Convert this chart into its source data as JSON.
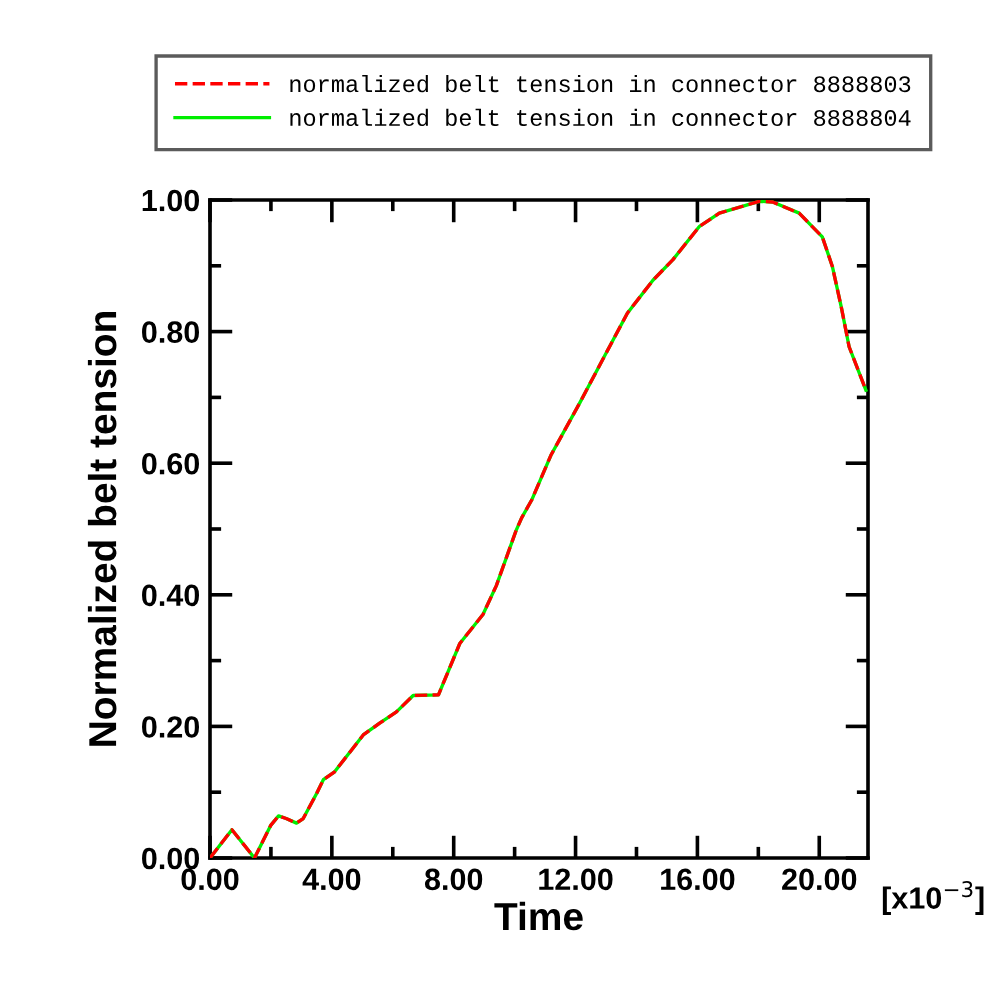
{
  "chart_data": {
    "type": "line",
    "xlabel": "Time",
    "ylabel": "Normalized belt tension",
    "annotations": [
      "[x10$^{−3}$]"
    ],
    "x": [
      0,
      0.72,
      1.46,
      2.0,
      2.25,
      2.5,
      2.84,
      3.06,
      3.5,
      3.72,
      4.09,
      5.03,
      5.57,
      6.12,
      6.67,
      7.5,
      8.2,
      8.96,
      9.4,
      10.05,
      10.23,
      10.56,
      11.19,
      12.13,
      13.0,
      13.7,
      14.54,
      15.19,
      16.07,
      16.72,
      18.03,
      18.47,
      19.34,
      20.1,
      20.43,
      20.72,
      20.98,
      21.53
    ],
    "series": [
      {
        "name": "normalized belt tension in connector 8888803",
        "color": "#ff0000",
        "line_style": "dashed",
        "values": [
          0,
          0.043,
          0,
          0.05,
          0.064,
          0.06,
          0.053,
          0.06,
          0.098,
          0.119,
          0.131,
          0.187,
          0.205,
          0.222,
          0.247,
          0.248,
          0.326,
          0.37,
          0.414,
          0.498,
          0.517,
          0.544,
          0.612,
          0.691,
          0.767,
          0.828,
          0.878,
          0.909,
          0.96,
          0.98,
          0.998,
          0.997,
          0.98,
          0.944,
          0.899,
          0.838,
          0.777,
          0.711
        ]
      },
      {
        "name": "normalized belt tension in connector 8888804",
        "color": "#00ee00",
        "line_style": "solid",
        "values": [
          0,
          0.043,
          0,
          0.05,
          0.064,
          0.06,
          0.053,
          0.06,
          0.098,
          0.119,
          0.131,
          0.187,
          0.205,
          0.222,
          0.247,
          0.248,
          0.326,
          0.37,
          0.414,
          0.498,
          0.517,
          0.544,
          0.612,
          0.691,
          0.767,
          0.828,
          0.878,
          0.909,
          0.96,
          0.98,
          0.998,
          0.997,
          0.98,
          0.944,
          0.899,
          0.838,
          0.777,
          0.711
        ]
      }
    ],
    "xlim": [
      0,
      21.6
    ],
    "xticks": [
      {
        "value": 0,
        "label": "0.00"
      },
      {
        "value": 2,
        "label": null
      },
      {
        "value": 4,
        "label": "4.00"
      },
      {
        "value": 6,
        "label": null
      },
      {
        "value": 8,
        "label": "8.00"
      },
      {
        "value": 10,
        "label": null
      },
      {
        "value": 12,
        "label": "12.00"
      },
      {
        "value": 14,
        "label": null
      },
      {
        "value": 16,
        "label": "16.00"
      },
      {
        "value": 18,
        "label": null
      },
      {
        "value": 20,
        "label": "20.00"
      }
    ],
    "ylim": [
      0,
      1
    ],
    "yticks": [
      {
        "value": 0,
        "label": "0.00"
      },
      {
        "value": 0.1,
        "label": null
      },
      {
        "value": 0.2,
        "label": "0.20"
      },
      {
        "value": 0.3,
        "label": null
      },
      {
        "value": 0.4,
        "label": "0.40"
      },
      {
        "value": 0.5,
        "label": null
      },
      {
        "value": 0.6,
        "label": "0.60"
      },
      {
        "value": 0.7,
        "label": null
      },
      {
        "value": 0.8,
        "label": "0.80"
      },
      {
        "value": 0.9,
        "label": null
      },
      {
        "value": 1,
        "label": "1.00"
      }
    ],
    "grid": false,
    "legend": "top"
  }
}
